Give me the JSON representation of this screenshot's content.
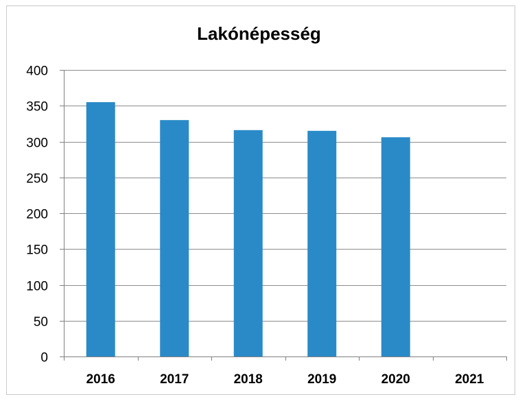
{
  "chart_data": {
    "type": "bar",
    "title": "Lakónépesség",
    "categories": [
      "2016",
      "2017",
      "2018",
      "2019",
      "2020",
      "2021"
    ],
    "values": [
      355,
      330,
      316,
      315,
      306,
      null
    ],
    "ylim": [
      0,
      400
    ],
    "yticks": [
      0,
      50,
      100,
      150,
      200,
      250,
      300,
      350,
      400
    ],
    "grid": true,
    "legend": "none",
    "bar_color": "#2a8ac8"
  }
}
